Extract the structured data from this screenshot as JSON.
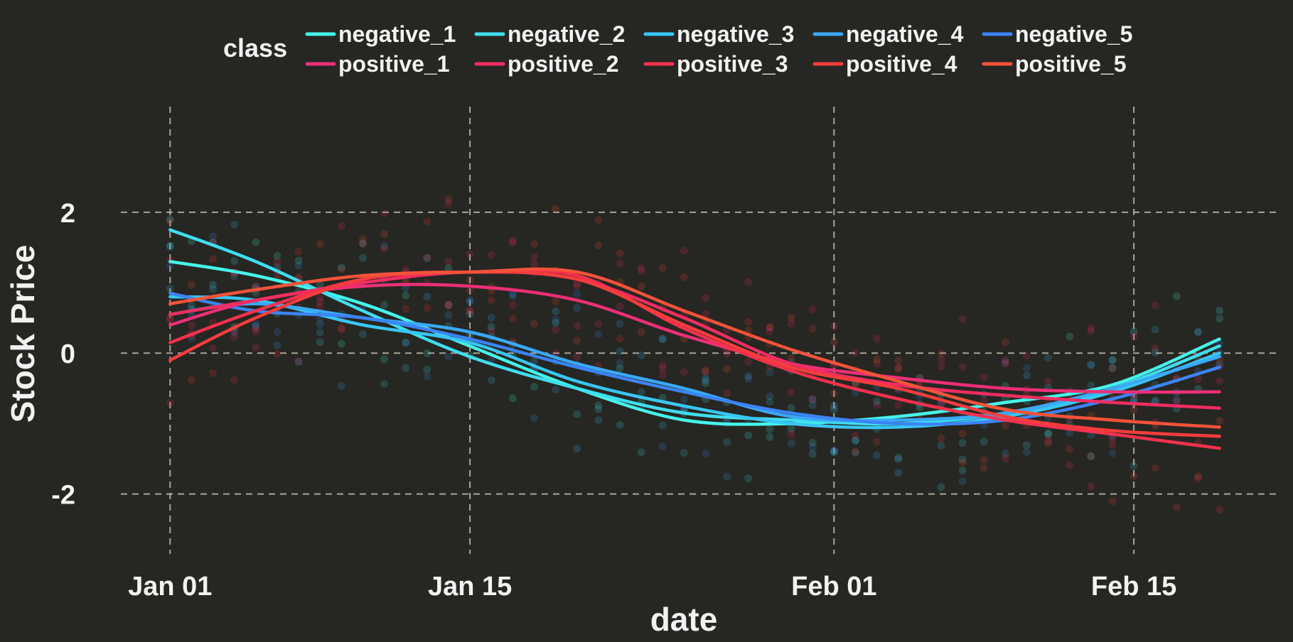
{
  "chart_data": {
    "type": "line",
    "title": "",
    "xlabel": "date",
    "ylabel": "Stock Price",
    "x_ticks": [
      "Jan 01",
      "Jan 15",
      "Feb 01",
      "Feb 15"
    ],
    "x_tick_days": [
      0,
      14,
      31,
      45
    ],
    "y_ticks": [
      -2,
      0,
      2
    ],
    "y_tick_labels": [
      "-2",
      "0",
      "2"
    ],
    "xlim_days": [
      -2.3,
      51.8
    ],
    "ylim": [
      -2.85,
      3.5
    ],
    "grid": true,
    "legend": {
      "title": "class",
      "placement": "top"
    },
    "x_dates": [
      "Jan 01",
      "Jan 05",
      "Jan 10",
      "Jan 15",
      "Jan 20",
      "Jan 25",
      "Jan 30",
      "Feb 04",
      "Feb 09",
      "Feb 14",
      "Feb 19"
    ],
    "x_days": [
      0,
      4,
      9,
      14,
      19,
      24,
      29,
      34,
      39,
      44,
      49
    ],
    "series": [
      {
        "name": "negative_1",
        "color": "#45F4EA",
        "values": [
          1.3,
          1.1,
          0.7,
          0.1,
          -0.5,
          -0.95,
          -1.0,
          -0.9,
          -0.7,
          -0.45,
          0.2
        ]
      },
      {
        "name": "negative_2",
        "color": "#3FDEEE",
        "values": [
          1.75,
          1.3,
          0.6,
          -0.05,
          -0.5,
          -0.85,
          -0.95,
          -1.0,
          -0.85,
          -0.5,
          0.1
        ]
      },
      {
        "name": "negative_3",
        "color": "#38C6F4",
        "values": [
          0.8,
          0.75,
          0.4,
          0.15,
          -0.4,
          -0.75,
          -1.0,
          -1.05,
          -0.9,
          -0.55,
          0.0
        ]
      },
      {
        "name": "negative_4",
        "color": "#3AA8F7",
        "values": [
          0.55,
          0.7,
          0.5,
          0.3,
          -0.15,
          -0.5,
          -0.9,
          -0.95,
          -0.85,
          -0.5,
          -0.05
        ]
      },
      {
        "name": "negative_5",
        "color": "#3B84F6",
        "values": [
          0.85,
          0.6,
          0.5,
          0.2,
          -0.2,
          -0.55,
          -0.85,
          -1.0,
          -0.95,
          -0.65,
          -0.2
        ]
      },
      {
        "name": "positive_1",
        "color": "#EC2F77",
        "values": [
          0.4,
          0.75,
          0.95,
          0.95,
          0.75,
          0.25,
          -0.15,
          -0.35,
          -0.5,
          -0.55,
          -0.55
        ]
      },
      {
        "name": "positive_2",
        "color": "#F12D62",
        "values": [
          0.55,
          0.75,
          1.0,
          1.15,
          1.05,
          0.5,
          -0.15,
          -0.45,
          -0.6,
          -0.7,
          -0.78
        ]
      },
      {
        "name": "positive_3",
        "color": "#F4314D",
        "values": [
          0.15,
          0.6,
          1.05,
          1.15,
          1.1,
          0.35,
          -0.25,
          -0.65,
          -0.95,
          -1.15,
          -1.35
        ]
      },
      {
        "name": "positive_4",
        "color": "#F53D3C",
        "values": [
          -0.1,
          0.5,
          1.05,
          1.15,
          1.05,
          0.4,
          -0.2,
          -0.5,
          -0.9,
          -1.1,
          -1.18
        ]
      },
      {
        "name": "positive_5",
        "color": "#F4533A",
        "values": [
          0.7,
          0.9,
          1.1,
          1.15,
          1.15,
          0.6,
          0.05,
          -0.4,
          -0.8,
          -0.95,
          -1.05
        ]
      }
    ]
  }
}
